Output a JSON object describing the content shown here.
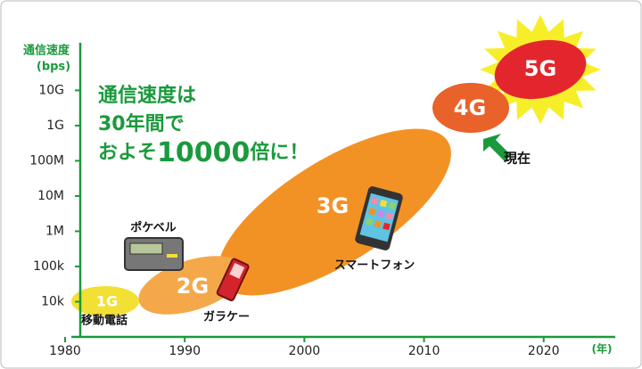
{
  "chart_data": {
    "type": "timeline",
    "y_label": [
      "通信速度",
      "(bps)"
    ],
    "x_unit": "(年)",
    "log_y": true,
    "xlim": [
      1980,
      2023
    ],
    "xticks": [
      1980,
      1990,
      2000,
      2010,
      2020
    ],
    "ylim": [
      1000,
      200000000000
    ],
    "yticks": [
      {
        "value": 10000,
        "label": "10k"
      },
      {
        "value": 100000,
        "label": "100k"
      },
      {
        "value": 1000000,
        "label": "1M"
      },
      {
        "value": 10000000,
        "label": "10M"
      },
      {
        "value": 100000000,
        "label": "100M"
      },
      {
        "value": 1000000000,
        "label": "1G"
      },
      {
        "value": 10000000000,
        "label": "10G"
      }
    ],
    "headline": [
      "通信速度は",
      "30年間で",
      [
        "およそ",
        "10000",
        "倍に！"
      ]
    ],
    "generations": [
      "1G",
      "2G",
      "3G",
      "4G",
      "5G"
    ],
    "labels": {
      "1G": "移動電話",
      "pager": "ポケベル",
      "2G": "ガラケー",
      "3G": "スマートフォン",
      "now": "現在"
    }
  }
}
